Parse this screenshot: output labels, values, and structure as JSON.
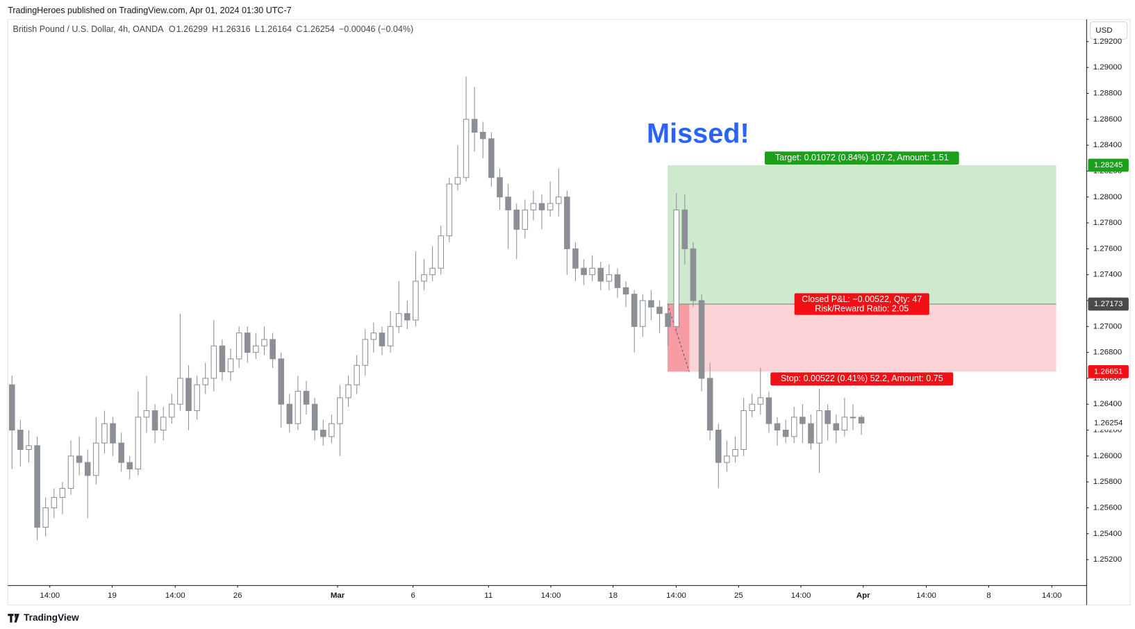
{
  "header": {
    "published": "TradingHeroes published on TradingView.com, Apr 01, 2024 01:30 UTC-7",
    "instrument": "British Pound / U.S. Dollar, 4h, OANDA",
    "ohlc": [
      {
        "label": "O",
        "value": "1.26299"
      },
      {
        "label": "H",
        "value": "1.26316"
      },
      {
        "label": "L",
        "value": "1.26164"
      },
      {
        "label": "C",
        "value": "1.26254"
      }
    ],
    "change": "−0.00046 (−0.04%)",
    "currency": "USD"
  },
  "footer": {
    "brand": "TradingView"
  },
  "chart_data": {
    "type": "candlestick",
    "annotation": "Missed!",
    "up_color": "#ffffff",
    "down_color": "#8c8f96",
    "wick_color": "#8c8f96",
    "open": [
      1.2655,
      1.262,
      1.2605,
      1.2608,
      1.2545,
      1.256,
      1.2568,
      1.2575,
      1.26,
      1.2595,
      1.2585,
      1.261,
      1.2625,
      1.261,
      1.2595,
      1.259,
      1.263,
      1.2635,
      1.262,
      1.263,
      1.264,
      1.266,
      1.2635,
      1.2655,
      1.266,
      1.2685,
      1.2665,
      1.2675,
      1.2695,
      1.268,
      1.2685,
      1.269,
      1.2675,
      1.264,
      1.2625,
      1.265,
      1.264,
      1.262,
      1.2615,
      1.2625,
      1.2645,
      1.2655,
      1.267,
      1.269,
      1.2695,
      1.2685,
      1.27,
      1.271,
      1.2705,
      1.2735,
      1.274,
      1.2745,
      1.277,
      1.281,
      1.2815,
      1.286,
      1.285,
      1.2845,
      1.2815,
      1.28,
      1.279,
      1.2775,
      1.279,
      1.2795,
      1.279,
      1.2795,
      1.28,
      1.276,
      1.2745,
      1.274,
      1.2745,
      1.2735,
      1.274,
      1.273,
      1.2725,
      1.27,
      1.272,
      1.2715,
      1.271,
      1.27,
      1.279,
      1.276,
      1.272,
      1.266,
      1.262,
      1.2595,
      1.26,
      1.2605,
      1.2635,
      1.264,
      1.2645,
      1.2625,
      1.262,
      1.2615,
      1.263,
      1.2625,
      1.261,
      1.2635,
      1.2625,
      1.262,
      1.263,
      1.26299
    ],
    "high": [
      1.2662,
      1.2628,
      1.262,
      1.2615,
      1.2568,
      1.2575,
      1.258,
      1.2612,
      1.2615,
      1.2605,
      1.263,
      1.2635,
      1.263,
      1.2618,
      1.26,
      1.265,
      1.2662,
      1.264,
      1.2638,
      1.2648,
      1.271,
      1.267,
      1.2662,
      1.2672,
      1.2705,
      1.269,
      1.2683,
      1.27,
      1.27,
      1.2695,
      1.27,
      1.2695,
      1.268,
      1.2648,
      1.2662,
      1.2658,
      1.2645,
      1.2628,
      1.2632,
      1.2655,
      1.2662,
      1.2678,
      1.2698,
      1.2703,
      1.27,
      1.2712,
      1.2735,
      1.272,
      1.2758,
      1.2752,
      1.2762,
      1.2778,
      1.2815,
      1.284,
      1.2893,
      1.2885,
      1.2858,
      1.285,
      1.2822,
      1.281,
      1.2795,
      1.2798,
      1.2805,
      1.2802,
      1.2812,
      1.2822,
      1.2805,
      1.2765,
      1.2752,
      1.2755,
      1.275,
      1.2748,
      1.2745,
      1.2735,
      1.2728,
      1.2725,
      1.2728,
      1.272,
      1.2718,
      1.2803,
      1.2802,
      1.2765,
      1.2725,
      1.2672,
      1.2625,
      1.2612,
      1.2615,
      1.2645,
      1.2648,
      1.2668,
      1.265,
      1.263,
      1.2628,
      1.2638,
      1.264,
      1.2632,
      1.2652,
      1.264,
      1.2632,
      1.2645,
      1.264,
      1.26316
    ],
    "low": [
      1.259,
      1.2592,
      1.2595,
      1.2535,
      1.2538,
      1.2552,
      1.2555,
      1.257,
      1.2585,
      1.2552,
      1.2578,
      1.2602,
      1.26,
      1.2588,
      1.2582,
      1.2585,
      1.2618,
      1.261,
      1.2612,
      1.2625,
      1.2635,
      1.262,
      1.2628,
      1.2648,
      1.265,
      1.2658,
      1.2658,
      1.2668,
      1.2672,
      1.2675,
      1.2678,
      1.2668,
      1.2622,
      1.2618,
      1.262,
      1.2632,
      1.2612,
      1.2608,
      1.261,
      1.26,
      1.2638,
      1.2648,
      1.2662,
      1.268,
      1.2678,
      1.268,
      1.2695,
      1.2698,
      1.27,
      1.2728,
      1.2735,
      1.274,
      1.2765,
      1.2805,
      1.2812,
      1.2835,
      1.283,
      1.2808,
      1.279,
      1.276,
      1.2752,
      1.2768,
      1.2782,
      1.2775,
      1.2785,
      1.2785,
      1.274,
      1.2735,
      1.2732,
      1.2735,
      1.2728,
      1.2728,
      1.2722,
      1.2715,
      1.268,
      1.2692,
      1.2705,
      1.2695,
      1.2685,
      1.2695,
      1.2748,
      1.2715,
      1.265,
      1.2612,
      1.2575,
      1.2588,
      1.2595,
      1.26,
      1.263,
      1.2632,
      1.2618,
      1.2608,
      1.261,
      1.261,
      1.261,
      1.2605,
      1.2587,
      1.2612,
      1.261,
      1.2615,
      1.262,
      1.26164
    ],
    "close": [
      1.262,
      1.2605,
      1.2608,
      1.2545,
      1.256,
      1.2568,
      1.2575,
      1.26,
      1.2595,
      1.2585,
      1.261,
      1.2625,
      1.261,
      1.2595,
      1.259,
      1.263,
      1.2635,
      1.262,
      1.263,
      1.264,
      1.266,
      1.2635,
      1.2655,
      1.266,
      1.2685,
      1.2665,
      1.2675,
      1.2695,
      1.268,
      1.2685,
      1.269,
      1.2675,
      1.264,
      1.2625,
      1.265,
      1.264,
      1.262,
      1.2615,
      1.2625,
      1.2645,
      1.2655,
      1.267,
      1.269,
      1.2695,
      1.2685,
      1.27,
      1.271,
      1.2705,
      1.2735,
      1.274,
      1.2745,
      1.277,
      1.281,
      1.2815,
      1.286,
      1.285,
      1.2845,
      1.2815,
      1.28,
      1.279,
      1.2775,
      1.279,
      1.2795,
      1.279,
      1.2795,
      1.28,
      1.276,
      1.2745,
      1.274,
      1.2745,
      1.2735,
      1.274,
      1.273,
      1.2725,
      1.27,
      1.272,
      1.2715,
      1.271,
      1.27,
      1.279,
      1.276,
      1.272,
      1.266,
      1.262,
      1.2595,
      1.26,
      1.2605,
      1.2635,
      1.264,
      1.2645,
      1.2625,
      1.262,
      1.2615,
      1.263,
      1.2625,
      1.261,
      1.2635,
      1.2625,
      1.262,
      1.263,
      1.26299,
      1.26254
    ],
    "xlim": [
      0,
      128.28
    ],
    "xticks": [
      {
        "value": 5.0,
        "label": "14:00"
      },
      {
        "value": 12.41,
        "label": "19"
      },
      {
        "value": 19.91,
        "label": "14:00"
      },
      {
        "value": 27.33,
        "label": "26"
      },
      {
        "value": 39.22,
        "label": "Mar"
      },
      {
        "value": 48.19,
        "label": "6"
      },
      {
        "value": 57.16,
        "label": "11"
      },
      {
        "value": 64.57,
        "label": "14:00"
      },
      {
        "value": 71.98,
        "label": "18"
      },
      {
        "value": 79.48,
        "label": "14:00"
      },
      {
        "value": 86.9,
        "label": "25"
      },
      {
        "value": 94.31,
        "label": "14:00"
      },
      {
        "value": 101.72,
        "label": "Apr"
      },
      {
        "value": 109.22,
        "label": "14:00"
      },
      {
        "value": 116.64,
        "label": "8"
      },
      {
        "value": 124.14,
        "label": "14:00"
      }
    ],
    "ylim": [
      1.25,
      1.2937
    ],
    "yticks": [
      {
        "value": 1.252,
        "label": "1.25200"
      },
      {
        "value": 1.254,
        "label": "1.25400"
      },
      {
        "value": 1.256,
        "label": "1.25600"
      },
      {
        "value": 1.258,
        "label": "1.25800"
      },
      {
        "value": 1.26,
        "label": "1.26000"
      },
      {
        "value": 1.262,
        "label": "1.26200"
      },
      {
        "value": 1.264,
        "label": "1.26400"
      },
      {
        "value": 1.266,
        "label": "1.26600"
      },
      {
        "value": 1.268,
        "label": "1.26800"
      },
      {
        "value": 1.27,
        "label": "1.27000"
      },
      {
        "value": 1.272,
        "label": "1.27200"
      },
      {
        "value": 1.274,
        "label": "1.27400"
      },
      {
        "value": 1.276,
        "label": "1.27600"
      },
      {
        "value": 1.278,
        "label": "1.27800"
      },
      {
        "value": 1.28,
        "label": "1.28000"
      },
      {
        "value": 1.282,
        "label": "1.28200"
      },
      {
        "value": 1.284,
        "label": "1.28400"
      },
      {
        "value": 1.286,
        "label": "1.28600"
      },
      {
        "value": 1.288,
        "label": "1.28800"
      },
      {
        "value": 1.29,
        "label": "1.29000"
      },
      {
        "value": 1.292,
        "label": "1.29200"
      }
    ],
    "grid": false,
    "position": {
      "entry": 1.27173,
      "target": 1.28245,
      "stop": 1.26651,
      "target_label": "Target: 0.01072 (0.84%) 107.2, Amount: 1.51",
      "pnl_label": "Closed P&L: −0.00522, Qty: 47",
      "rr_label": "Risk/Reward Ratio: 2.05",
      "stop_label": "Stop: 0.00522 (0.41%) 52.2, Amount: 0.75"
    }
  }
}
